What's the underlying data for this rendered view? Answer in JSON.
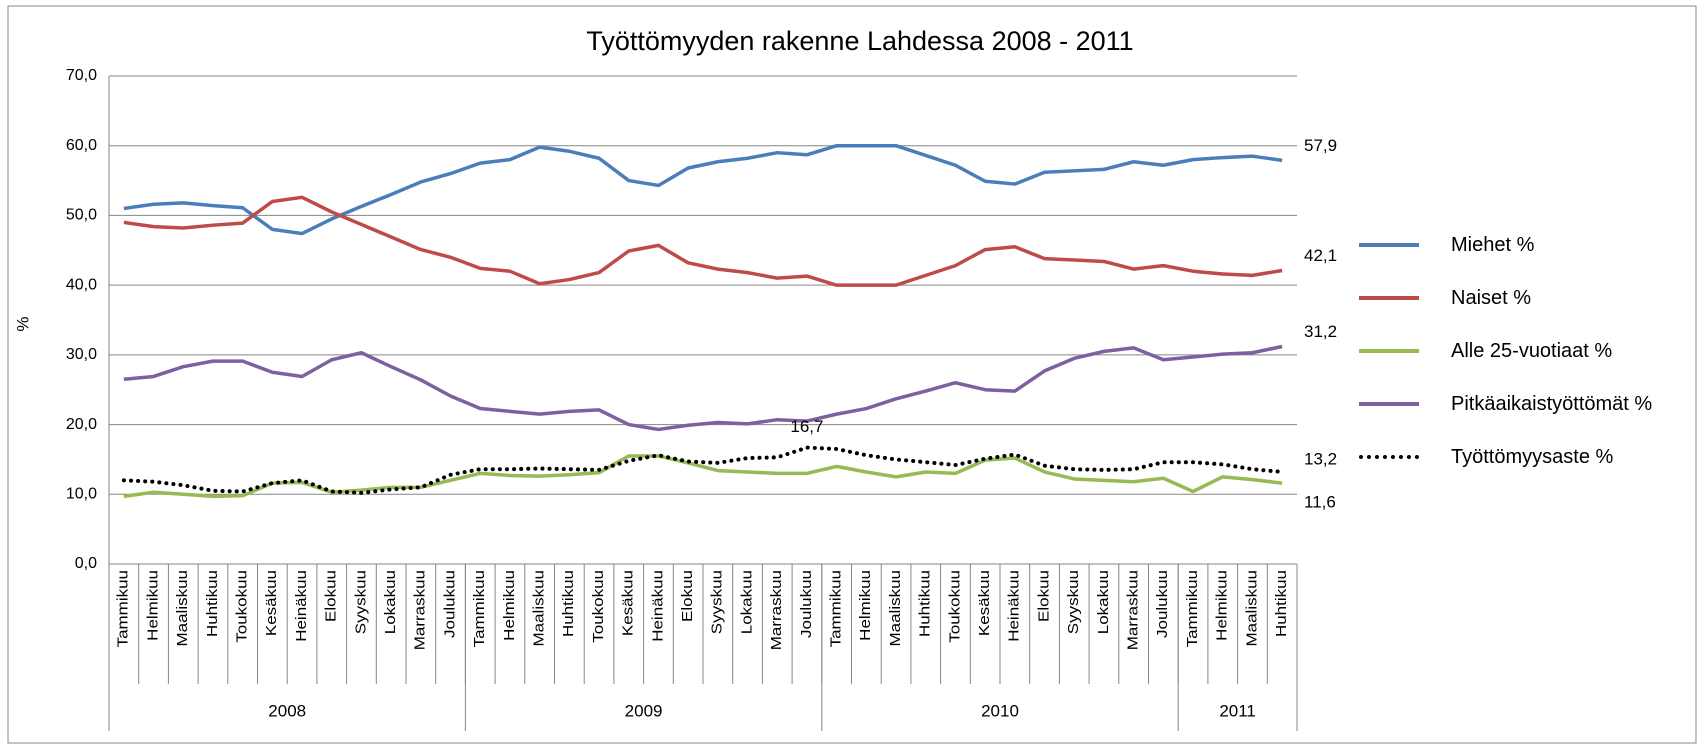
{
  "chart_data": {
    "type": "line",
    "title": "Työttömyyden rakenne Lahdessa 2008 - 2011",
    "ylabel": "%",
    "categories": [
      "Tammikuu",
      "Helmikuu",
      "Maaliskuu",
      "Huhtikuu",
      "Toukokuu",
      "Kesäkuu",
      "Heinäkuu",
      "Elokuu",
      "Syyskuu",
      "Lokakuu",
      "Marraskuu",
      "Joulukuu",
      "Tammikuu",
      "Helmikuu",
      "Maaliskuu",
      "Huhtikuu",
      "Toukokuu",
      "Kesäkuu",
      "Heinäkuu",
      "Elokuu",
      "Syyskuu",
      "Lokakuu",
      "Marraskuu",
      "Joulukuu",
      "Tammikuu",
      "Helmikuu",
      "Maaliskuu",
      "Huhtikuu",
      "Toukokuu",
      "Kesäkuu",
      "Heinäkuu",
      "Elokuu",
      "Syyskuu",
      "Lokakuu",
      "Marraskuu",
      "Joulukuu",
      "Tammikuu",
      "Helmikuu",
      "Maaliskuu",
      "Huhtikuu"
    ],
    "category_groups": [
      {
        "label": "2008",
        "count": 12
      },
      {
        "label": "2009",
        "count": 12
      },
      {
        "label": "2010",
        "count": 12
      },
      {
        "label": "2011",
        "count": 4
      }
    ],
    "ylim": [
      0,
      70
    ],
    "yticks": [
      {
        "value": 0,
        "label": "0,0"
      },
      {
        "value": 10,
        "label": "10,0"
      },
      {
        "value": 20,
        "label": "20,0"
      },
      {
        "value": 30,
        "label": "30,0"
      },
      {
        "value": 40,
        "label": "40,0"
      },
      {
        "value": 50,
        "label": "50,0"
      },
      {
        "value": 60,
        "label": "60,0"
      },
      {
        "value": 70,
        "label": "70,0"
      }
    ],
    "grid": true,
    "legend": "right",
    "series": [
      {
        "name": "Miehet %",
        "color": "#4a7ebb",
        "values": [
          51.0,
          51.6,
          51.8,
          51.4,
          51.1,
          48.0,
          47.4,
          49.5,
          51.3,
          53.0,
          54.8,
          56.0,
          57.5,
          58.0,
          59.8,
          59.2,
          58.2,
          55.0,
          54.3,
          56.8,
          57.7,
          58.2,
          59.0,
          58.7,
          60.0,
          60.0,
          60.0,
          58.6,
          57.2,
          54.9,
          54.5,
          56.2,
          56.4,
          56.6,
          57.7,
          57.2,
          58.0,
          58.3,
          58.5,
          57.9
        ],
        "value_labels": [
          null,
          null,
          null,
          null,
          null,
          null,
          null,
          null,
          null,
          null,
          null,
          null,
          null,
          null,
          null,
          null,
          null,
          null,
          null,
          null,
          null,
          null,
          null,
          null,
          null,
          null,
          null,
          null,
          null,
          null,
          null,
          null,
          null,
          null,
          null,
          null,
          null,
          null,
          null,
          "57,9"
        ]
      },
      {
        "name": "Naiset %",
        "color": "#be4b48",
        "values": [
          49.0,
          48.4,
          48.2,
          48.6,
          48.9,
          52.0,
          52.6,
          50.5,
          48.7,
          46.9,
          45.1,
          44.0,
          42.4,
          42.0,
          40.2,
          40.8,
          41.8,
          44.9,
          45.7,
          43.2,
          42.3,
          41.8,
          41.0,
          41.3,
          40.0,
          40.0,
          40.0,
          41.4,
          42.8,
          45.1,
          45.5,
          43.8,
          43.6,
          43.4,
          42.3,
          42.8,
          42.0,
          41.6,
          41.4,
          42.1
        ],
        "value_labels": [
          null,
          null,
          null,
          null,
          null,
          null,
          null,
          null,
          null,
          null,
          null,
          null,
          null,
          null,
          null,
          null,
          null,
          null,
          null,
          null,
          null,
          null,
          null,
          null,
          null,
          null,
          null,
          null,
          null,
          null,
          null,
          null,
          null,
          null,
          null,
          null,
          null,
          null,
          null,
          "42,1"
        ]
      },
      {
        "name": "Alle 25-vuotiaat %",
        "color": "#98b954",
        "values": [
          9.7,
          10.3,
          10.0,
          9.7,
          9.8,
          11.6,
          11.7,
          10.3,
          10.6,
          11.0,
          11.0,
          12.0,
          13.0,
          12.7,
          12.6,
          12.8,
          13.1,
          15.5,
          15.5,
          14.5,
          13.4,
          13.2,
          13.0,
          13.0,
          14.0,
          13.2,
          12.5,
          13.2,
          13.0,
          14.9,
          15.2,
          13.2,
          12.2,
          12.0,
          11.8,
          12.3,
          10.4,
          12.5,
          12.1,
          11.6
        ],
        "value_labels": [
          null,
          null,
          null,
          null,
          null,
          null,
          null,
          null,
          null,
          null,
          null,
          null,
          null,
          null,
          null,
          null,
          null,
          null,
          null,
          null,
          null,
          null,
          null,
          null,
          null,
          null,
          null,
          null,
          null,
          null,
          null,
          null,
          null,
          null,
          null,
          null,
          null,
          null,
          null,
          "11,6"
        ]
      },
      {
        "name": "Pitkäaikaistyöttömät %",
        "color": "#7d60a0",
        "values": [
          26.5,
          26.9,
          28.3,
          29.1,
          29.1,
          27.5,
          26.9,
          29.3,
          30.3,
          28.3,
          26.4,
          24.1,
          22.3,
          21.9,
          21.5,
          21.9,
          22.1,
          20.0,
          19.3,
          19.9,
          20.3,
          20.1,
          20.7,
          20.5,
          21.5,
          22.3,
          23.7,
          24.8,
          26.0,
          25.0,
          24.8,
          27.7,
          29.5,
          30.5,
          31.0,
          29.3,
          29.7,
          30.1,
          30.3,
          31.2
        ],
        "value_labels": [
          null,
          null,
          null,
          null,
          null,
          null,
          null,
          null,
          null,
          null,
          null,
          null,
          null,
          null,
          null,
          null,
          null,
          null,
          null,
          null,
          null,
          null,
          null,
          null,
          null,
          null,
          null,
          null,
          null,
          null,
          null,
          null,
          null,
          null,
          null,
          null,
          null,
          null,
          null,
          "31,2"
        ]
      },
      {
        "name": "Työttömyysaste %",
        "color": "#000000",
        "dash": "dotted",
        "values": [
          12.0,
          11.8,
          11.3,
          10.5,
          10.4,
          11.6,
          12.0,
          10.4,
          10.2,
          10.7,
          11.0,
          12.8,
          13.6,
          13.6,
          13.7,
          13.6,
          13.5,
          14.8,
          15.6,
          14.7,
          14.5,
          15.2,
          15.3,
          16.7,
          16.5,
          15.6,
          15.0,
          14.6,
          14.2,
          15.1,
          15.7,
          14.1,
          13.6,
          13.5,
          13.6,
          14.6,
          14.6,
          14.3,
          13.6,
          13.2
        ],
        "value_labels": [
          null,
          null,
          null,
          null,
          null,
          null,
          null,
          null,
          null,
          null,
          null,
          null,
          null,
          null,
          null,
          null,
          null,
          null,
          null,
          null,
          null,
          null,
          null,
          "16,7",
          null,
          null,
          null,
          null,
          null,
          null,
          null,
          null,
          null,
          null,
          null,
          null,
          null,
          null,
          null,
          "13,2"
        ]
      }
    ]
  }
}
